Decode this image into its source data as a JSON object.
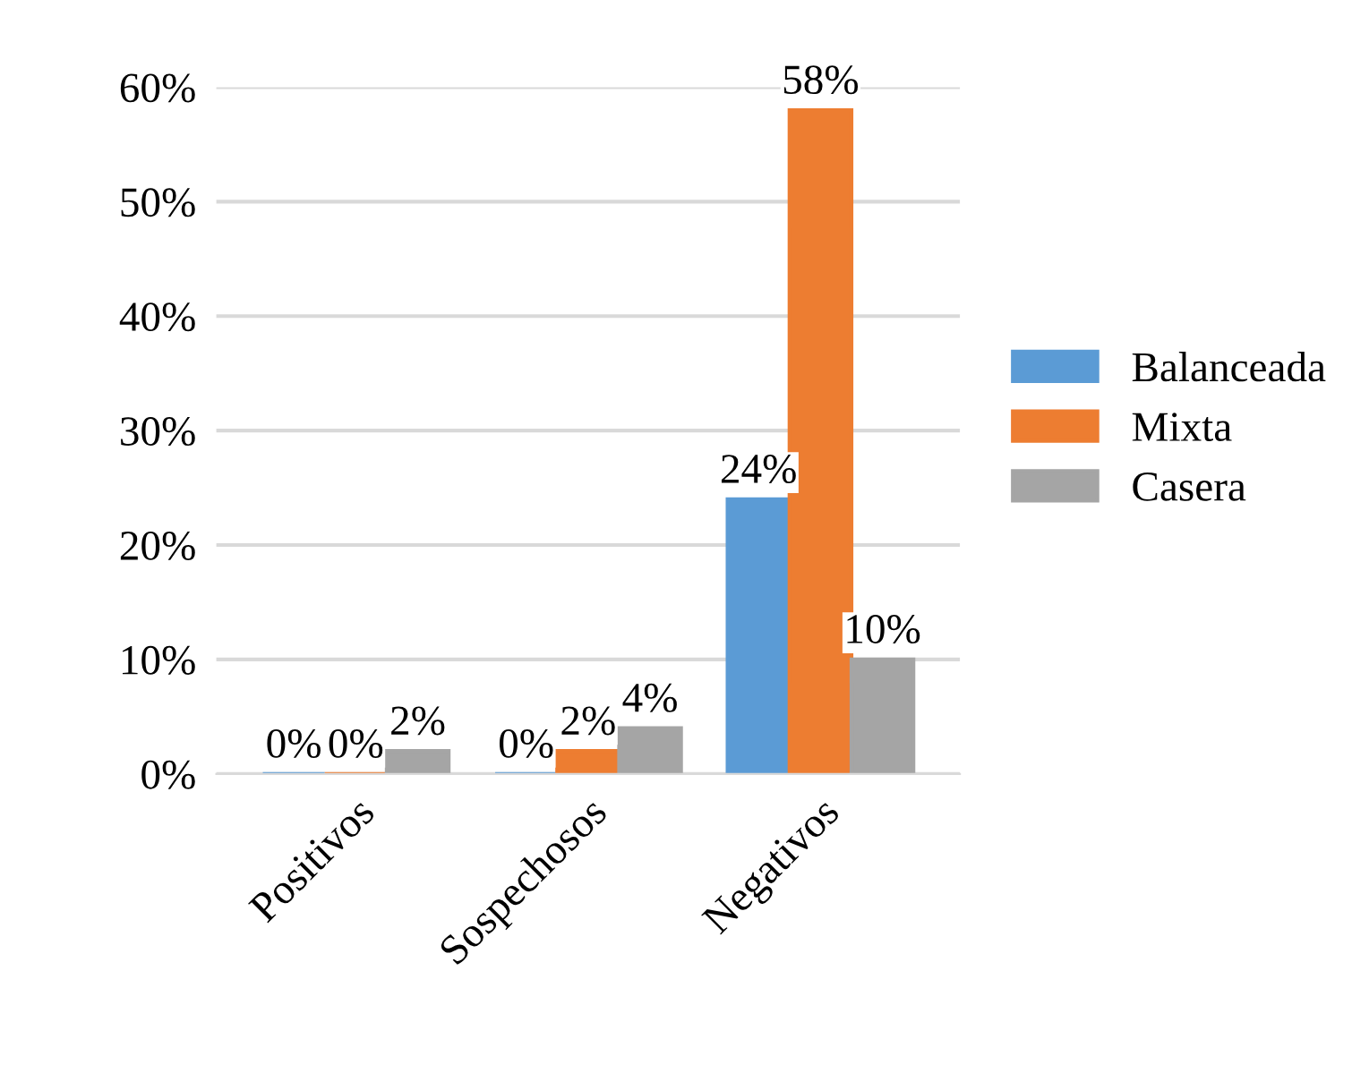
{
  "chart_data": {
    "type": "bar",
    "categories": [
      "Positivos",
      "Sospechosos",
      "Negativos"
    ],
    "series": [
      {
        "name": "Balanceada",
        "color": "#5b9bd5",
        "values": [
          0,
          0,
          24
        ],
        "value_labels": [
          "0%",
          "0%",
          "24%"
        ]
      },
      {
        "name": "Mixta",
        "color": "#ed7d31",
        "values": [
          0,
          2,
          58
        ],
        "value_labels": [
          "0%",
          "2%",
          "58%"
        ]
      },
      {
        "name": "Casera",
        "color": "#a5a5a5",
        "values": [
          2,
          4,
          10
        ],
        "value_labels": [
          "2%",
          "4%",
          "10%"
        ]
      }
    ],
    "ylim": [
      0,
      60
    ],
    "yticks": [
      {
        "value": 0,
        "label": "0%"
      },
      {
        "value": 10,
        "label": "10%"
      },
      {
        "value": 20,
        "label": "20%"
      },
      {
        "value": 30,
        "label": "30%"
      },
      {
        "value": 40,
        "label": "40%"
      },
      {
        "value": 50,
        "label": "50%"
      },
      {
        "value": 60,
        "label": "60%"
      }
    ],
    "grid": "y",
    "legend": "right"
  }
}
